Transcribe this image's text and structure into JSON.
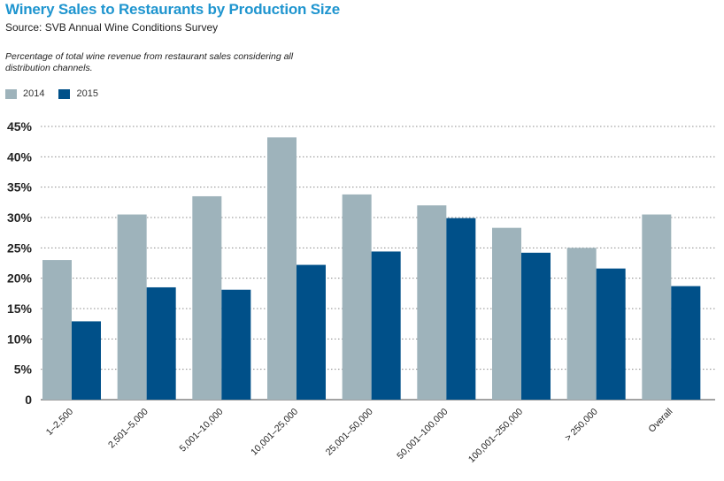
{
  "title": "Winery Sales to Restaurants by Production Size",
  "source": "Source: SVB Annual Wine Conditions Survey",
  "subtitle": "Percentage of total wine revenue from restaurant sales considering all distribution channels.",
  "colors": {
    "title": "#1f95cf",
    "series_2014": "#9eb3bb",
    "series_2015": "#005089",
    "grid": "#8c8c8c"
  },
  "chart_data": {
    "type": "bar",
    "title": "Winery Sales to Restaurants by Production Size",
    "xlabel": "",
    "ylabel": "",
    "ylim": [
      0,
      45
    ],
    "yticks": [
      0,
      5,
      10,
      15,
      20,
      25,
      30,
      35,
      40,
      45
    ],
    "ytick_labels": [
      "0",
      "5%",
      "10%",
      "15%",
      "20%",
      "25%",
      "30%",
      "35%",
      "40%",
      "45%"
    ],
    "grid": true,
    "legend_position": "top-left",
    "categories": [
      "1–2,500",
      "2,501–5,000",
      "5,001–10,000",
      "10,001–25,000",
      "25,001–50,000",
      "50,001–100,000",
      "100,001–250,000",
      "> 250,000",
      "Overall"
    ],
    "series": [
      {
        "name": "2014",
        "values": [
          23.0,
          30.5,
          33.5,
          43.2,
          33.8,
          32.0,
          28.3,
          25.0,
          30.5
        ]
      },
      {
        "name": "2015",
        "values": [
          12.9,
          18.5,
          18.1,
          22.2,
          24.4,
          29.9,
          24.2,
          21.6,
          18.7
        ]
      }
    ]
  }
}
